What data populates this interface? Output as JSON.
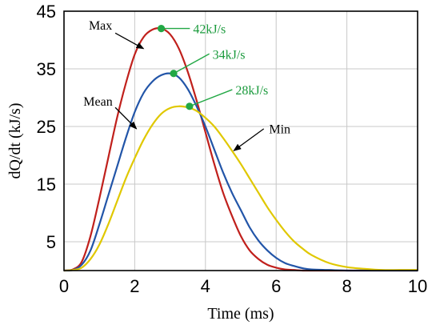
{
  "chart_data": {
    "type": "line",
    "title": "",
    "xlabel": "Time (ms)",
    "ylabel": "dQ/dt (kJ/s)",
    "xlim": [
      0,
      10
    ],
    "ylim": [
      0,
      45
    ],
    "xticks": [
      0,
      2,
      4,
      6,
      8,
      10
    ],
    "yticks": [
      5,
      15,
      25,
      35,
      45
    ],
    "grid": true,
    "x": [
      0,
      0.25,
      0.5,
      0.75,
      1.0,
      1.25,
      1.5,
      1.75,
      2.0,
      2.25,
      2.5,
      2.75,
      3.0,
      3.25,
      3.5,
      3.75,
      4.0,
      4.25,
      4.5,
      4.75,
      5.0,
      5.25,
      5.5,
      5.75,
      6.0,
      6.25,
      6.5,
      6.75,
      7.0,
      7.5,
      8.0,
      8.5,
      9.0,
      9.5,
      10.0
    ],
    "series": [
      {
        "name": "Max",
        "color": "#c0201c",
        "values": [
          0,
          0.2,
          1.5,
          6,
          12.5,
          19.5,
          26.5,
          32.5,
          37.5,
          40.5,
          41.8,
          42,
          41,
          38.5,
          34.5,
          29.5,
          24,
          18.5,
          13.5,
          9.5,
          6,
          3.5,
          2,
          1,
          0.5,
          0.2,
          0.1,
          0,
          0,
          0,
          0,
          0,
          0,
          0,
          0
        ]
      },
      {
        "name": "Mean",
        "color": "#2255a8",
        "values": [
          0,
          0.1,
          1,
          3.5,
          8,
          13,
          18,
          23,
          27.5,
          30.8,
          32.8,
          33.9,
          34.2,
          33.5,
          31.5,
          28.5,
          25,
          21,
          17,
          13.5,
          10.5,
          7.5,
          5.2,
          3.5,
          2.2,
          1.3,
          0.8,
          0.4,
          0.2,
          0.1,
          0,
          0,
          0,
          0,
          0
        ]
      },
      {
        "name": "Min",
        "color": "#e0c800",
        "values": [
          0,
          0.1,
          0.5,
          2,
          4.5,
          8,
          12,
          16,
          19.5,
          22.7,
          25.3,
          27.2,
          28.2,
          28.5,
          28.3,
          27.7,
          26.5,
          25,
          23,
          20.8,
          18.5,
          16,
          13.5,
          11,
          8.8,
          6.8,
          5.1,
          3.8,
          2.7,
          1.3,
          0.6,
          0.3,
          0.1,
          0.1,
          0.1
        ]
      }
    ],
    "peaks": [
      {
        "x": 2.75,
        "y": 42,
        "label": "42kJ/s"
      },
      {
        "x": 3.1,
        "y": 34.2,
        "label": "34kJ/s"
      },
      {
        "x": 3.55,
        "y": 28.5,
        "label": "28kJ/s"
      }
    ],
    "annotations": [
      {
        "text": "Max"
      },
      {
        "text": "Mean"
      },
      {
        "text": "Min"
      }
    ],
    "colors": {
      "peak_marker": "#22a845",
      "peak_label": "#1a9a3c",
      "arrow": "#000000"
    }
  }
}
